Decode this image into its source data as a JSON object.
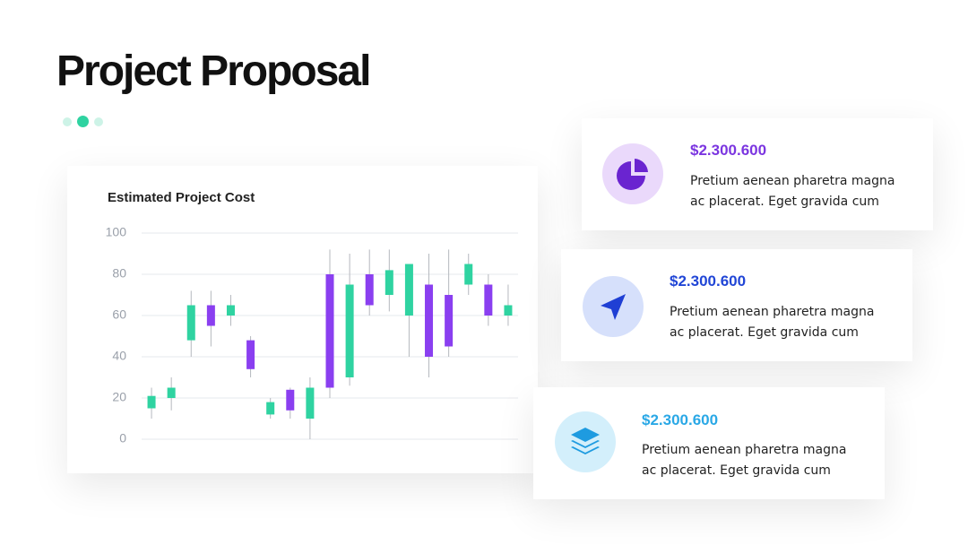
{
  "title": "Project Proposal",
  "chart_data": {
    "type": "candlestick",
    "title": "Estimated Project Cost",
    "open": [
      15,
      20,
      48,
      65,
      60,
      48,
      12,
      24,
      10,
      80,
      30,
      80,
      70,
      60,
      75,
      70,
      75,
      75,
      60
    ],
    "high": [
      25,
      30,
      72,
      72,
      70,
      50,
      20,
      25,
      30,
      92,
      90,
      92,
      92,
      85,
      90,
      92,
      90,
      80,
      75
    ],
    "low": [
      10,
      14,
      40,
      45,
      55,
      30,
      10,
      10,
      0,
      20,
      26,
      60,
      62,
      40,
      30,
      40,
      70,
      55,
      55
    ],
    "close": [
      21,
      25,
      65,
      55,
      65,
      34,
      18,
      14,
      25,
      25,
      75,
      65,
      82,
      85,
      40,
      45,
      85,
      60,
      65
    ],
    "up_color": "#2fd3a1",
    "down_color": "#8a3ff0",
    "ylim": [
      0,
      100
    ],
    "yticks": [
      0,
      20,
      40,
      60,
      80,
      100
    ],
    "grid": true
  },
  "cards": [
    {
      "value": "$2.300.600",
      "lines": [
        "Pretium aenean pharetra magna",
        "ac placerat. Eget gravida cum"
      ]
    },
    {
      "value": "$2.300.600",
      "lines": [
        "Pretium aenean pharetra magna",
        "ac placerat. Eget gravida cum"
      ]
    },
    {
      "value": "$2.300.600",
      "lines": [
        "Pretium aenean pharetra magna",
        "ac placerat. Eget gravida cum"
      ]
    }
  ]
}
